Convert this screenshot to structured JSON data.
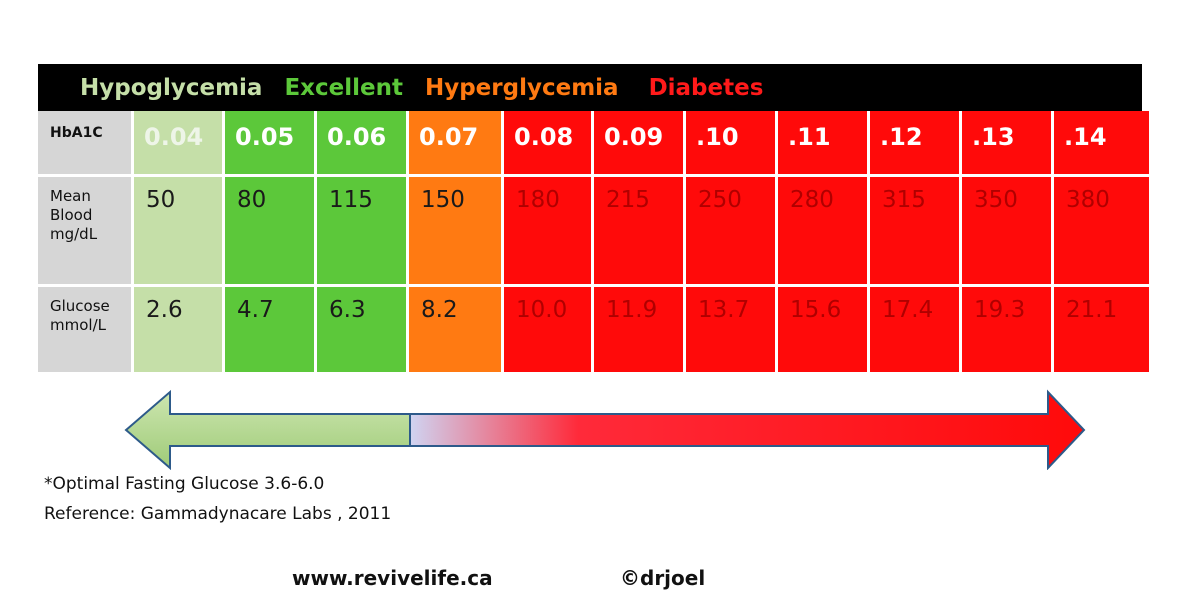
{
  "legend": [
    {
      "label": "Hypoglycemia",
      "color": "#c5dfa8"
    },
    {
      "label": "Excellent",
      "color": "#5cc83a"
    },
    {
      "label": "Hyperglycemia",
      "color": "#ff7a12"
    },
    {
      "label": "Diabetes",
      "color": "#ff1a1a"
    }
  ],
  "table": {
    "row_labels": {
      "hba1c": "HbA1C",
      "mean_blood_lines": [
        "Mean",
        "Blood",
        "mg/dL"
      ],
      "glucose_lines": [
        "Glucose",
        "mmol/L"
      ]
    },
    "columns": [
      {
        "hba1c": "0.04",
        "mean_blood": "50",
        "glucose": "2.6",
        "zone": "hypoglycemia"
      },
      {
        "hba1c": "0.05",
        "mean_blood": "80",
        "glucose": "4.7",
        "zone": "excellent"
      },
      {
        "hba1c": "0.06",
        "mean_blood": "115",
        "glucose": "6.3",
        "zone": "excellent"
      },
      {
        "hba1c": "0.07",
        "mean_blood": "150",
        "glucose": "8.2",
        "zone": "hyperglycemia"
      },
      {
        "hba1c": "0.08",
        "mean_blood": "180",
        "glucose": "10.0",
        "zone": "diabetes"
      },
      {
        "hba1c": "0.09",
        "mean_blood": "215",
        "glucose": "11.9",
        "zone": "diabetes"
      },
      {
        "hba1c": ".10",
        "mean_blood": "250",
        "glucose": "13.7",
        "zone": "diabetes"
      },
      {
        "hba1c": ".11",
        "mean_blood": "280",
        "glucose": "15.6",
        "zone": "diabetes"
      },
      {
        "hba1c": ".12",
        "mean_blood": "315",
        "glucose": "17.4",
        "zone": "diabetes"
      },
      {
        "hba1c": ".13",
        "mean_blood": "350",
        "glucose": "19.3",
        "zone": "diabetes"
      },
      {
        "hba1c": ".14",
        "mean_blood": "380",
        "glucose": "21.1",
        "zone": "diabetes"
      }
    ]
  },
  "arrow": {
    "left_color": "#b9d99a",
    "right_color": "#ff0a0a"
  },
  "notes": {
    "optimal": "*Optimal Fasting Glucose 3.6-6.0",
    "reference": "Reference: Gammadynacare Labs , 2011"
  },
  "footer": {
    "url": "www.revivelife.ca",
    "copyright": "©drjoel"
  }
}
